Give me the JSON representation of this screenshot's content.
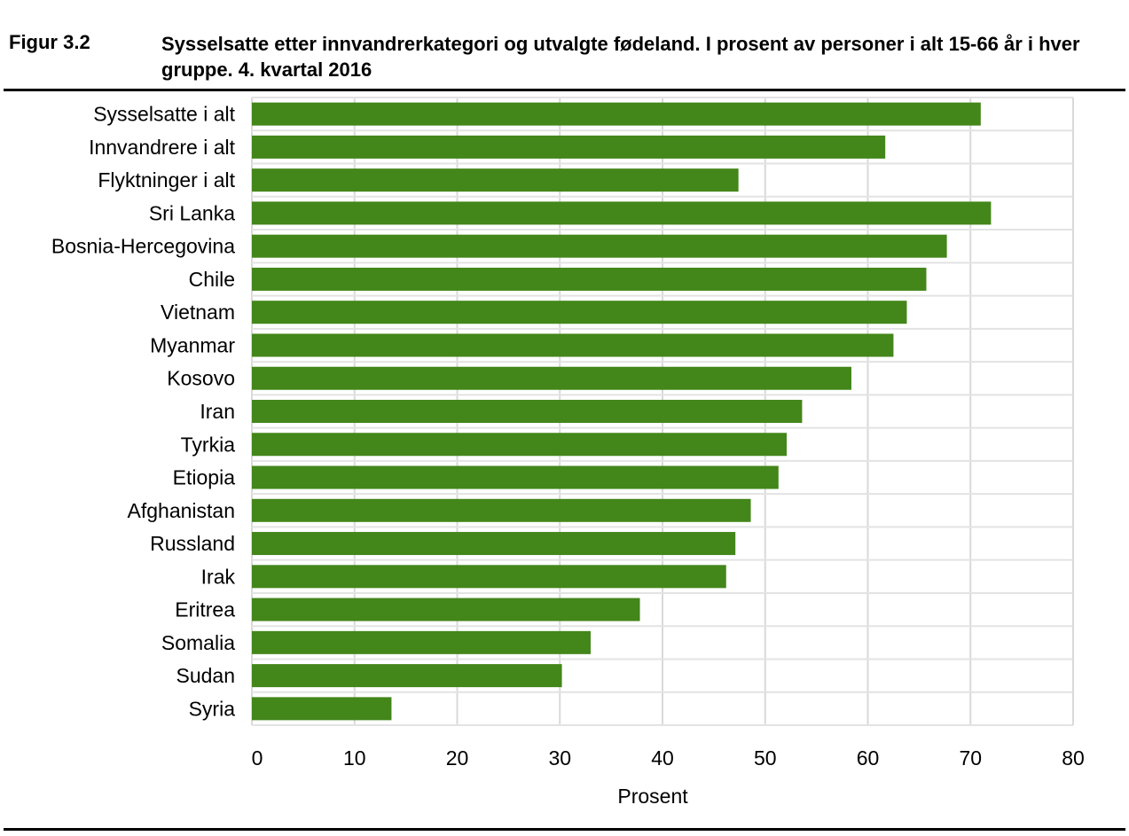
{
  "figure": {
    "label": "Figur 3.2",
    "title": "Sysselsatte etter innvandrerkategori og utvalgte fødeland. I prosent av personer i alt 15-66 år i hver gruppe. 4. kvartal 2016"
  },
  "chart_data": {
    "type": "bar",
    "orientation": "horizontal",
    "title": "Sysselsatte etter innvandrerkategori og utvalgte fødeland. I prosent av personer i alt 15-66 år i hver gruppe. 4. kvartal 2016",
    "xlabel": "Prosent",
    "ylabel": "",
    "xlim": [
      0,
      80
    ],
    "xticks": [
      0,
      10,
      20,
      30,
      40,
      50,
      60,
      70,
      80
    ],
    "grid": true,
    "bar_color": "#43861a",
    "categories": [
      "Sysselsatte i alt",
      "Innvandrere i alt",
      "Flyktninger i alt",
      "Sri Lanka",
      "Bosnia-Hercegovina",
      "Chile",
      "Vietnam",
      "Myanmar",
      "Kosovo",
      "Iran",
      "Tyrkia",
      "Etiopia",
      "Afghanistan",
      "Russland",
      "Irak",
      "Eritrea",
      "Somalia",
      "Sudan",
      "Syria"
    ],
    "values": [
      71.0,
      61.7,
      47.4,
      72.0,
      67.7,
      65.7,
      63.8,
      62.5,
      58.4,
      53.6,
      52.1,
      51.3,
      48.6,
      47.1,
      46.2,
      37.8,
      33.0,
      30.2,
      13.6
    ]
  }
}
